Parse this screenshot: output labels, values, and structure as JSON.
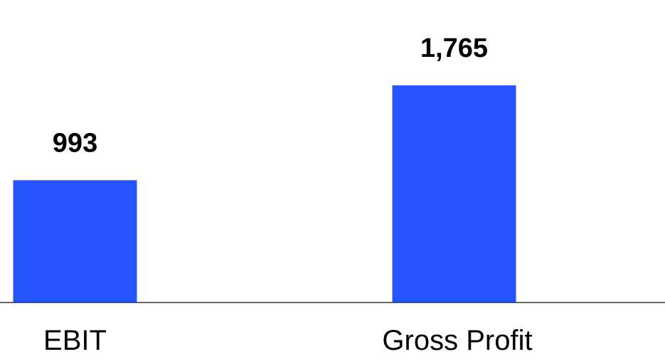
{
  "colors": {
    "bar": "#2554FF",
    "axis": "#333333",
    "text": "#000000",
    "background": "#FFFFFF"
  },
  "chart_data": {
    "type": "bar",
    "categories": [
      "EBIT",
      "Gross Profit"
    ],
    "values": [
      993,
      1765
    ],
    "value_labels": [
      "993",
      "1,765"
    ],
    "title": "",
    "xlabel": "",
    "ylabel": "",
    "ylim": [
      0,
      2460
    ],
    "grid": false,
    "legend": "none"
  }
}
